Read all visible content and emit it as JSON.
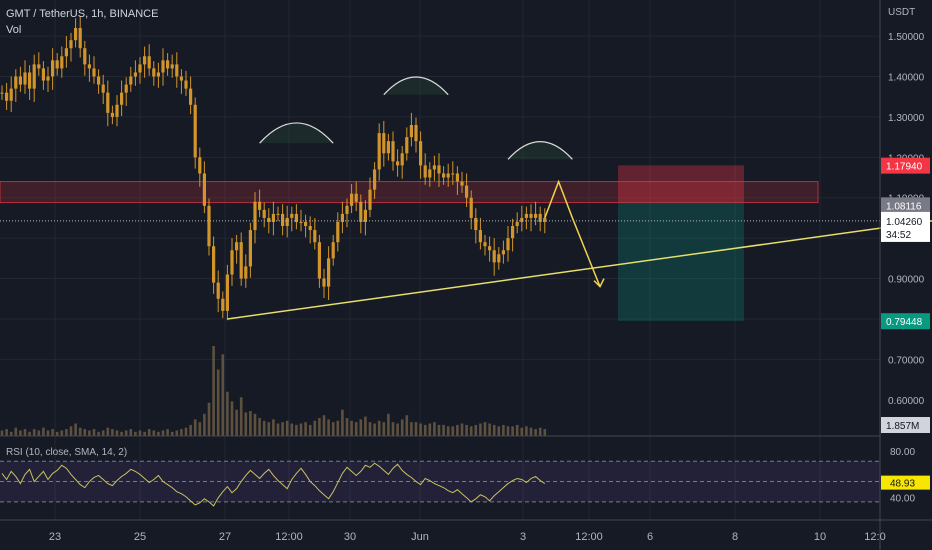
{
  "header": {
    "symbol": "GMT / TetherUS, 1h, BINANCE",
    "volume_label": "Vol",
    "rsi_label": "RSI (10, close, SMA, 14, 2)"
  },
  "price_axis": {
    "unit": "USDT",
    "ticks": [
      "1.50000",
      "1.40000",
      "1.30000",
      "1.20000",
      "1.10000",
      "0.90000",
      "0.80000",
      "0.70000",
      "0.60000"
    ],
    "badges": {
      "stop": "1.17940",
      "resistance": "1.08116",
      "last": "1.04260",
      "countdown": "34:52",
      "target": "0.79448",
      "volume": "1.857M",
      "rsi": "48.93"
    },
    "rsi_ticks": [
      "80.00",
      "40.00"
    ]
  },
  "time_axis": {
    "ticks": [
      "23",
      "25",
      "27",
      "12:00",
      "30",
      "Jun",
      "3",
      "12:00",
      "6",
      "8",
      "10",
      "12:0"
    ]
  },
  "colors": {
    "background": "#161a25",
    "candle": "#d2952b",
    "trendline": "#e6df6a",
    "zone_red": "#f23645",
    "zone_green": "#089981",
    "rsi_line": "#c9c060",
    "rsi_band": "#7e57c2"
  },
  "chart_data": {
    "type": "line",
    "price_range": [
      0.55,
      1.52
    ],
    "price_series_1h": [
      1.36,
      1.34,
      1.37,
      1.4,
      1.38,
      1.41,
      1.37,
      1.43,
      1.42,
      1.39,
      1.4,
      1.44,
      1.42,
      1.45,
      1.47,
      1.49,
      1.52,
      1.47,
      1.43,
      1.42,
      1.4,
      1.38,
      1.36,
      1.31,
      1.3,
      1.33,
      1.36,
      1.38,
      1.4,
      1.41,
      1.43,
      1.45,
      1.42,
      1.4,
      1.41,
      1.44,
      1.42,
      1.43,
      1.4,
      1.39,
      1.37,
      1.33,
      1.2,
      1.16,
      1.08,
      0.98,
      0.89,
      0.85,
      0.82,
      0.91,
      0.97,
      0.99,
      0.9,
      0.93,
      1.02,
      1.09,
      1.07,
      1.05,
      1.04,
      1.06,
      1.06,
      1.03,
      1.05,
      1.06,
      1.04,
      1.04,
      1.03,
      1.02,
      0.99,
      0.9,
      0.88,
      0.95,
      0.99,
      1.04,
      1.06,
      1.08,
      1.11,
      1.09,
      1.04,
      1.07,
      1.12,
      1.17,
      1.26,
      1.21,
      1.24,
      1.19,
      1.18,
      1.21,
      1.25,
      1.28,
      1.24,
      1.18,
      1.15,
      1.17,
      1.18,
      1.16,
      1.15,
      1.16,
      1.16,
      1.14,
      1.13,
      1.1,
      1.05,
      1.02,
      0.99,
      0.98,
      0.97,
      0.94,
      0.96,
      0.97,
      1.0,
      1.03,
      1.04,
      1.05,
      1.06,
      1.05,
      1.06,
      1.04,
      1.05
    ],
    "volume_series": [
      0.4,
      0.5,
      0.3,
      0.6,
      0.4,
      0.5,
      0.3,
      0.5,
      0.4,
      0.6,
      0.4,
      0.5,
      0.3,
      0.4,
      0.5,
      0.7,
      0.9,
      0.6,
      0.5,
      0.4,
      0.5,
      0.3,
      0.4,
      0.6,
      0.5,
      0.4,
      0.3,
      0.4,
      0.5,
      0.3,
      0.4,
      0.3,
      0.5,
      0.4,
      0.3,
      0.4,
      0.5,
      0.3,
      0.4,
      0.5,
      0.6,
      0.8,
      1.2,
      1.0,
      1.6,
      2.4,
      6.5,
      4.8,
      5.9,
      3.2,
      2.5,
      1.9,
      2.8,
      1.7,
      1.8,
      1.6,
      1.3,
      1.1,
      1.0,
      1.2,
      0.9,
      1.0,
      1.1,
      0.9,
      0.8,
      0.9,
      1.0,
      0.8,
      1.1,
      1.3,
      1.5,
      1.2,
      1.0,
      1.1,
      1.9,
      1.3,
      1.1,
      1.0,
      1.2,
      1.4,
      1.0,
      0.9,
      1.1,
      1.0,
      1.6,
      1.0,
      0.9,
      1.2,
      1.5,
      1.0,
      1.0,
      0.9,
      0.8,
      0.9,
      1.0,
      0.8,
      0.8,
      0.7,
      0.7,
      0.8,
      0.9,
      0.8,
      0.7,
      0.8,
      0.9,
      1.0,
      0.9,
      0.8,
      0.7,
      0.8,
      0.7,
      0.7,
      0.8,
      0.6,
      0.7,
      0.6,
      0.5,
      0.6,
      0.5
    ],
    "rsi_series": [
      58,
      52,
      60,
      55,
      48,
      57,
      62,
      50,
      55,
      60,
      52,
      58,
      61,
      66,
      63,
      57,
      52,
      47,
      44,
      50,
      54,
      56,
      52,
      48,
      46,
      51,
      55,
      58,
      62,
      60,
      57,
      53,
      49,
      52,
      56,
      50,
      47,
      44,
      40,
      38,
      35,
      31,
      27,
      29,
      33,
      30,
      26,
      34,
      40,
      45,
      39,
      43,
      50,
      56,
      61,
      57,
      53,
      58,
      62,
      56,
      51,
      47,
      43,
      52,
      58,
      63,
      57,
      50,
      46,
      41,
      37,
      33,
      40,
      49,
      58,
      64,
      60,
      56,
      60,
      66,
      64,
      68,
      65,
      61,
      57,
      63,
      67,
      61,
      57,
      54,
      50,
      47,
      53,
      51,
      48,
      46,
      44,
      41,
      39,
      42,
      38,
      34,
      30,
      33,
      37,
      35,
      31,
      36,
      40,
      44,
      48,
      51,
      53,
      52,
      49,
      53,
      55,
      51,
      48
    ],
    "rsi_range": [
      20,
      85
    ],
    "rsi_levels": [
      70,
      50,
      30
    ],
    "trendline": {
      "start": {
        "t": 49,
        "p": 0.8
      },
      "end": {
        "t": 210,
        "p": 1.055
      }
    },
    "resistance_zone": {
      "top": 1.14,
      "bottom": 1.088
    },
    "stop_zone": {
      "top": 1.18,
      "bottom": 1.088
    },
    "target_zone": {
      "top": 1.088,
      "bottom": 0.795
    },
    "projection": [
      {
        "t": 118,
        "p": 1.05
      },
      {
        "t": 121,
        "p": 1.14
      },
      {
        "t": 124,
        "p": 1.05
      },
      {
        "t": 130,
        "p": 0.88
      }
    ],
    "arcs": [
      {
        "t0": 56,
        "t1": 72,
        "p": 1.235
      },
      {
        "t0": 83,
        "t1": 97,
        "p": 1.355
      },
      {
        "t0": 110,
        "t1": 124,
        "p": 1.195
      }
    ]
  }
}
